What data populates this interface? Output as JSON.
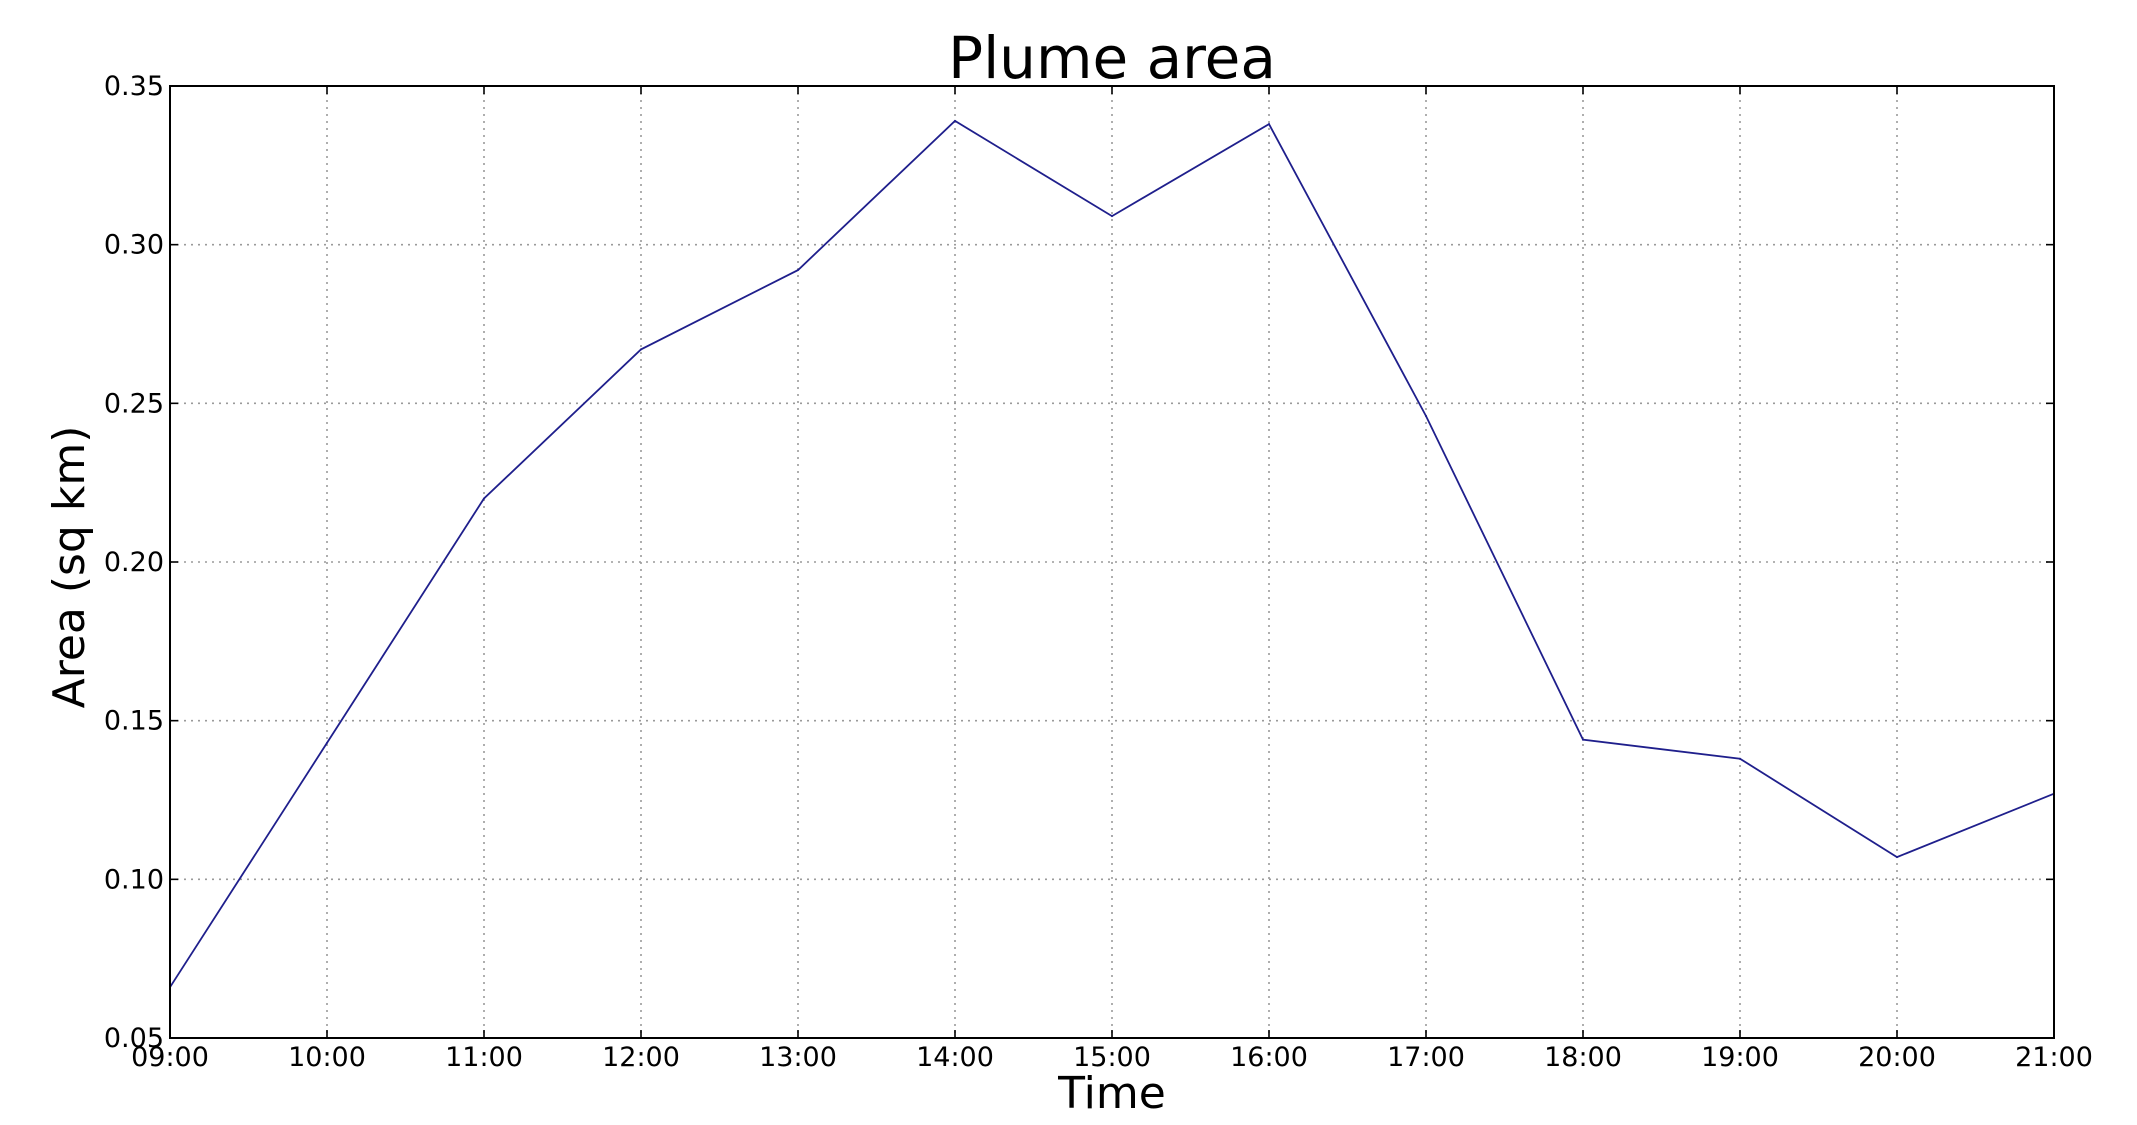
{
  "chart_data": {
    "type": "line",
    "title": "Plume area",
    "xlabel": "Time",
    "ylabel": "Area (sq km)",
    "categories": [
      "09:00",
      "10:00",
      "11:00",
      "12:00",
      "13:00",
      "14:00",
      "15:00",
      "16:00",
      "17:00",
      "18:00",
      "19:00",
      "20:00",
      "21:00"
    ],
    "yticks": [
      "0.05",
      "0.10",
      "0.15",
      "0.20",
      "0.25",
      "0.30",
      "0.35"
    ],
    "ylim": [
      0.05,
      0.35
    ],
    "grid": true,
    "series": [
      {
        "color": "#1f1f8c",
        "values": [
          0.066,
          0.143,
          0.22,
          0.267,
          0.292,
          0.339,
          0.309,
          0.338,
          0.246,
          0.144,
          0.138,
          0.107,
          0.127
        ]
      }
    ]
  }
}
